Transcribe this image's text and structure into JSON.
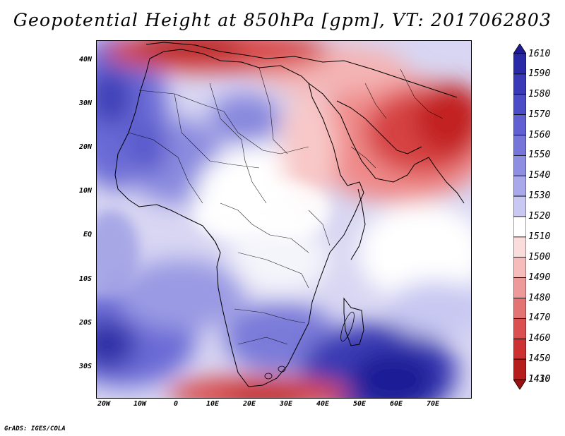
{
  "title": "Geopotential Height at 850hPa [gpm], VT: 2017062803",
  "footer": "GrADS: IGES/COLA",
  "lat_labels": [
    "40N",
    "30N",
    "20N",
    "10N",
    "EQ",
    "10S",
    "20S",
    "30S"
  ],
  "lon_labels": [
    "20W",
    "10W",
    "0",
    "10E",
    "20E",
    "30E",
    "40E",
    "50E",
    "60E",
    "70E"
  ],
  "colorbar": {
    "levels": [
      "1610",
      "1590",
      "1580",
      "1570",
      "1560",
      "1550",
      "1540",
      "1530",
      "1520",
      "1510",
      "1500",
      "1490",
      "1480",
      "1470",
      "1460",
      "1450",
      "1430",
      "1410"
    ],
    "colors": [
      "#1f1b96",
      "#2a2aa8",
      "#3a3ab8",
      "#4c4cc6",
      "#6060d2",
      "#7676da",
      "#8e8ee2",
      "#a8a8ea",
      "#c8c8f2",
      "#ffffff",
      "#fbdcdc",
      "#f6bcbc",
      "#ee9a9a",
      "#e47474",
      "#da5050",
      "#cc3030",
      "#b51c1c",
      "#9c1010"
    ]
  },
  "chart_data": {
    "type": "heatmap",
    "title": "Geopotential Height at 850hPa [gpm], VT: 2017062803",
    "variable": "Geopotential Height",
    "level": "850hPa",
    "units": "gpm",
    "valid_time": "2017062803",
    "lon_range": [
      -22,
      80
    ],
    "lat_range": [
      -37,
      45
    ],
    "color_levels": [
      1410,
      1430,
      1450,
      1460,
      1470,
      1480,
      1490,
      1500,
      1510,
      1520,
      1530,
      1540,
      1550,
      1560,
      1570,
      1580,
      1590,
      1610
    ]
  }
}
